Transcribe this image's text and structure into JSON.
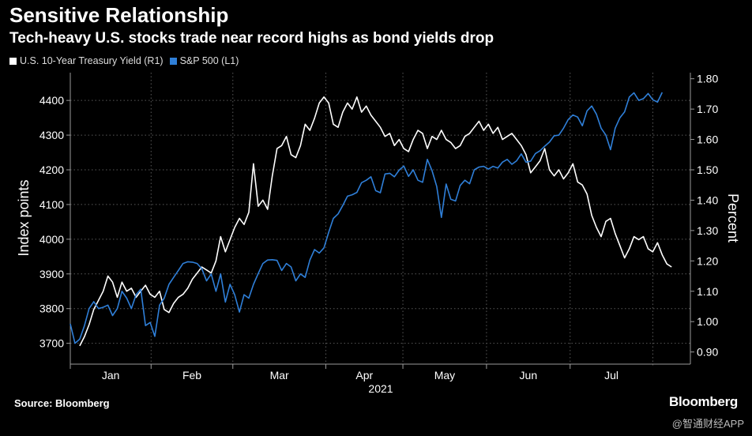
{
  "header": {
    "title": "Sensitive Relationship",
    "subtitle": "Tech-heavy U.S. stocks trade near record highs as bond yields drop"
  },
  "footer": {
    "source": "Source: Bloomberg",
    "brand": "Bloomberg",
    "watermark": "@智通财经APP"
  },
  "chart_data": {
    "type": "line",
    "title": "Sensitive Relationship",
    "subtitle": "Tech-heavy U.S. stocks trade near record highs as bond yields drop",
    "xlabel": "2021",
    "x_ticks": [
      "Jan",
      "Feb",
      "Mar",
      "Apr",
      "May",
      "Jun",
      "Jul"
    ],
    "y_left": {
      "label": "Index points",
      "ylim": [
        3640,
        4480
      ],
      "ticks": [
        3700,
        3800,
        3900,
        4000,
        4100,
        4200,
        4300,
        4400
      ]
    },
    "y_right": {
      "label": "Percent",
      "ylim": [
        0.86,
        1.82
      ],
      "ticks": [
        "0.90",
        "1.00",
        "1.10",
        "1.20",
        "1.30",
        "1.40",
        "1.50",
        "1.60",
        "1.70",
        "1.80"
      ]
    },
    "grid": true,
    "colors": {
      "treasury": "#ffffff",
      "sp500": "#2f7fd8",
      "grid": "#5a5a5a",
      "axis": "#9a9a9a"
    },
    "series": [
      {
        "name": "U.S. 10-Year Treasury Yield (R1)",
        "axis": "right",
        "color": "#ffffff",
        "points": [
          [
            1.0,
            0.92
          ],
          [
            1.5,
            0.95
          ],
          [
            2.0,
            0.99
          ],
          [
            2.5,
            1.04
          ],
          [
            3.0,
            1.07
          ],
          [
            3.5,
            1.1
          ],
          [
            4.0,
            1.15
          ],
          [
            4.5,
            1.13
          ],
          [
            5.0,
            1.08
          ],
          [
            5.5,
            1.13
          ],
          [
            6.0,
            1.1
          ],
          [
            6.5,
            1.11
          ],
          [
            7.0,
            1.08
          ],
          [
            7.5,
            1.1
          ],
          [
            8.0,
            1.12
          ],
          [
            8.5,
            1.09
          ],
          [
            9.0,
            1.08
          ],
          [
            9.5,
            1.1
          ],
          [
            10.0,
            1.04
          ],
          [
            10.5,
            1.03
          ],
          [
            11.0,
            1.06
          ],
          [
            11.5,
            1.08
          ],
          [
            12.0,
            1.09
          ],
          [
            12.5,
            1.11
          ],
          [
            13.0,
            1.14
          ],
          [
            13.5,
            1.16
          ],
          [
            14.0,
            1.18
          ],
          [
            14.5,
            1.17
          ],
          [
            15.0,
            1.16
          ],
          [
            15.5,
            1.2
          ],
          [
            16.0,
            1.28
          ],
          [
            16.5,
            1.23
          ],
          [
            17.0,
            1.27
          ],
          [
            17.5,
            1.31
          ],
          [
            18.0,
            1.34
          ],
          [
            18.5,
            1.32
          ],
          [
            19.0,
            1.36
          ],
          [
            19.5,
            1.52
          ],
          [
            20.0,
            1.38
          ],
          [
            20.5,
            1.4
          ],
          [
            21.0,
            1.37
          ],
          [
            21.5,
            1.48
          ],
          [
            22.0,
            1.57
          ],
          [
            22.5,
            1.58
          ],
          [
            23.0,
            1.61
          ],
          [
            23.5,
            1.55
          ],
          [
            24.0,
            1.54
          ],
          [
            24.5,
            1.58
          ],
          [
            25.0,
            1.65
          ],
          [
            25.5,
            1.63
          ],
          [
            26.0,
            1.67
          ],
          [
            26.5,
            1.72
          ],
          [
            27.0,
            1.74
          ],
          [
            27.5,
            1.72
          ],
          [
            28.0,
            1.65
          ],
          [
            28.5,
            1.64
          ],
          [
            29.0,
            1.69
          ],
          [
            29.5,
            1.72
          ],
          [
            30.0,
            1.7
          ],
          [
            30.5,
            1.74
          ],
          [
            31.0,
            1.69
          ],
          [
            31.5,
            1.71
          ],
          [
            32.0,
            1.68
          ],
          [
            32.5,
            1.66
          ],
          [
            33.0,
            1.64
          ],
          [
            33.5,
            1.61
          ],
          [
            34.0,
            1.62
          ],
          [
            34.5,
            1.58
          ],
          [
            35.0,
            1.6
          ],
          [
            35.5,
            1.57
          ],
          [
            36.0,
            1.56
          ],
          [
            36.5,
            1.6
          ],
          [
            37.0,
            1.63
          ],
          [
            37.5,
            1.62
          ],
          [
            38.0,
            1.57
          ],
          [
            38.5,
            1.61
          ],
          [
            39.0,
            1.6
          ],
          [
            39.5,
            1.63
          ],
          [
            40.0,
            1.6
          ],
          [
            40.5,
            1.59
          ],
          [
            41.0,
            1.57
          ],
          [
            41.5,
            1.58
          ],
          [
            42.0,
            1.61
          ],
          [
            42.5,
            1.62
          ],
          [
            43.0,
            1.64
          ],
          [
            43.5,
            1.66
          ],
          [
            44.0,
            1.63
          ],
          [
            44.5,
            1.65
          ],
          [
            45.0,
            1.62
          ],
          [
            45.5,
            1.64
          ],
          [
            46.0,
            1.6
          ],
          [
            46.5,
            1.61
          ],
          [
            47.0,
            1.62
          ],
          [
            47.5,
            1.6
          ],
          [
            48.0,
            1.58
          ],
          [
            48.5,
            1.55
          ],
          [
            49.0,
            1.49
          ],
          [
            49.5,
            1.51
          ],
          [
            50.0,
            1.53
          ],
          [
            50.5,
            1.57
          ],
          [
            51.0,
            1.5
          ],
          [
            51.5,
            1.48
          ],
          [
            52.0,
            1.5
          ],
          [
            52.5,
            1.47
          ],
          [
            53.0,
            1.49
          ],
          [
            53.5,
            1.52
          ],
          [
            54.0,
            1.46
          ],
          [
            54.5,
            1.45
          ],
          [
            55.0,
            1.42
          ],
          [
            55.5,
            1.35
          ],
          [
            56.0,
            1.31
          ],
          [
            56.5,
            1.28
          ],
          [
            57.0,
            1.33
          ],
          [
            57.5,
            1.34
          ],
          [
            58.0,
            1.29
          ],
          [
            58.5,
            1.25
          ],
          [
            59.0,
            1.21
          ],
          [
            59.5,
            1.24
          ],
          [
            60.0,
            1.28
          ],
          [
            60.5,
            1.27
          ],
          [
            61.0,
            1.28
          ],
          [
            61.5,
            1.24
          ],
          [
            62.0,
            1.23
          ],
          [
            62.5,
            1.26
          ],
          [
            63.0,
            1.22
          ],
          [
            63.5,
            1.19
          ],
          [
            64.0,
            1.18
          ]
        ]
      },
      {
        "name": "S&P 500 (L1)",
        "axis": "left",
        "color": "#2f7fd8",
        "points": [
          [
            0.0,
            3756
          ],
          [
            0.5,
            3700
          ],
          [
            1.0,
            3712
          ],
          [
            1.5,
            3750
          ],
          [
            2.0,
            3800
          ],
          [
            2.5,
            3820
          ],
          [
            3.0,
            3800
          ],
          [
            3.5,
            3804
          ],
          [
            4.0,
            3810
          ],
          [
            4.5,
            3780
          ],
          [
            5.0,
            3800
          ],
          [
            5.5,
            3850
          ],
          [
            6.0,
            3830
          ],
          [
            6.5,
            3800
          ],
          [
            7.0,
            3840
          ],
          [
            7.5,
            3856
          ],
          [
            8.0,
            3751
          ],
          [
            8.5,
            3760
          ],
          [
            9.0,
            3720
          ],
          [
            9.5,
            3810
          ],
          [
            10.0,
            3830
          ],
          [
            10.5,
            3870
          ],
          [
            11.0,
            3890
          ],
          [
            11.5,
            3910
          ],
          [
            12.0,
            3930
          ],
          [
            12.5,
            3935
          ],
          [
            13.0,
            3934
          ],
          [
            13.5,
            3930
          ],
          [
            14.0,
            3915
          ],
          [
            14.5,
            3880
          ],
          [
            15.0,
            3900
          ],
          [
            15.5,
            3850
          ],
          [
            16.0,
            3900
          ],
          [
            16.5,
            3819
          ],
          [
            17.0,
            3870
          ],
          [
            17.5,
            3840
          ],
          [
            18.0,
            3790
          ],
          [
            18.5,
            3840
          ],
          [
            19.0,
            3830
          ],
          [
            19.5,
            3870
          ],
          [
            20.0,
            3901
          ],
          [
            20.5,
            3930
          ],
          [
            21.0,
            3940
          ],
          [
            21.5,
            3941
          ],
          [
            22.0,
            3939
          ],
          [
            22.5,
            3910
          ],
          [
            23.0,
            3930
          ],
          [
            23.5,
            3920
          ],
          [
            24.0,
            3880
          ],
          [
            24.5,
            3900
          ],
          [
            25.0,
            3890
          ],
          [
            25.5,
            3940
          ],
          [
            26.0,
            3970
          ],
          [
            26.5,
            3960
          ],
          [
            27.0,
            3975
          ],
          [
            27.5,
            4020
          ],
          [
            28.0,
            4060
          ],
          [
            28.5,
            4073
          ],
          [
            29.0,
            4097
          ],
          [
            29.5,
            4124
          ],
          [
            30.0,
            4128
          ],
          [
            30.5,
            4135
          ],
          [
            31.0,
            4163
          ],
          [
            31.5,
            4170
          ],
          [
            32.0,
            4180
          ],
          [
            32.5,
            4140
          ],
          [
            33.0,
            4134
          ],
          [
            33.5,
            4188
          ],
          [
            34.0,
            4190
          ],
          [
            34.5,
            4180
          ],
          [
            35.0,
            4199
          ],
          [
            35.5,
            4211
          ],
          [
            36.0,
            4181
          ],
          [
            36.5,
            4200
          ],
          [
            37.0,
            4170
          ],
          [
            37.5,
            4164
          ],
          [
            38.0,
            4230
          ],
          [
            38.5,
            4198
          ],
          [
            39.0,
            4152
          ],
          [
            39.5,
            4063
          ],
          [
            40.0,
            4159
          ],
          [
            40.5,
            4115
          ],
          [
            41.0,
            4110
          ],
          [
            41.5,
            4155
          ],
          [
            42.0,
            4170
          ],
          [
            42.5,
            4160
          ],
          [
            43.0,
            4200
          ],
          [
            43.5,
            4208
          ],
          [
            44.0,
            4210
          ],
          [
            44.5,
            4202
          ],
          [
            45.0,
            4210
          ],
          [
            45.5,
            4205
          ],
          [
            46.0,
            4222
          ],
          [
            46.5,
            4230
          ],
          [
            47.0,
            4216
          ],
          [
            47.5,
            4226
          ],
          [
            48.0,
            4246
          ],
          [
            48.5,
            4222
          ],
          [
            49.0,
            4225
          ],
          [
            49.5,
            4247
          ],
          [
            50.0,
            4255
          ],
          [
            50.5,
            4268
          ],
          [
            51.0,
            4280
          ],
          [
            51.5,
            4298
          ],
          [
            52.0,
            4300
          ],
          [
            52.5,
            4320
          ],
          [
            53.0,
            4345
          ],
          [
            53.5,
            4358
          ],
          [
            54.0,
            4352
          ],
          [
            54.5,
            4327
          ],
          [
            55.0,
            4370
          ],
          [
            55.5,
            4384
          ],
          [
            56.0,
            4360
          ],
          [
            56.5,
            4320
          ],
          [
            57.0,
            4300
          ],
          [
            57.5,
            4258
          ],
          [
            58.0,
            4320
          ],
          [
            58.5,
            4350
          ],
          [
            59.0,
            4367
          ],
          [
            59.5,
            4410
          ],
          [
            60.0,
            4422
          ],
          [
            60.5,
            4400
          ],
          [
            61.0,
            4405
          ],
          [
            61.5,
            4420
          ],
          [
            62.0,
            4402
          ],
          [
            62.5,
            4395
          ],
          [
            63.0,
            4423
          ]
        ]
      }
    ]
  }
}
